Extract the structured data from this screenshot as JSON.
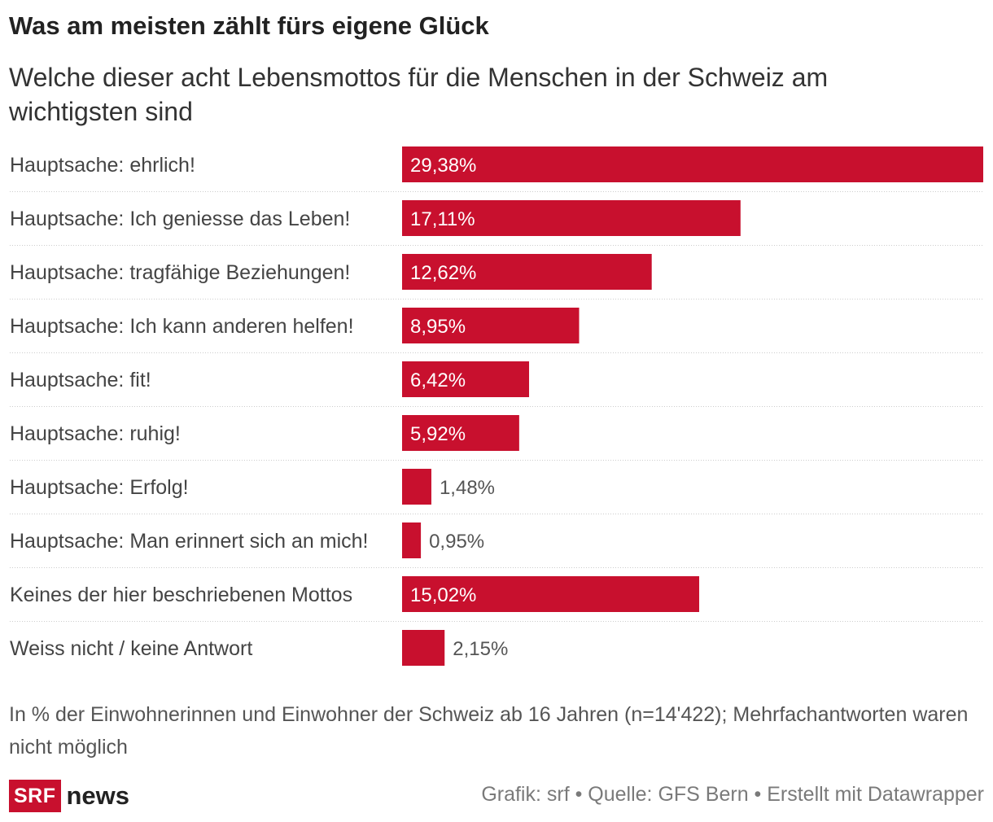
{
  "chart_data": {
    "type": "bar",
    "orientation": "horizontal",
    "title": "Was am meisten zählt fürs eigene Glück",
    "subtitle": "Welche dieser acht Lebensmottos für die Menschen in der Schweiz am wichtigsten sind",
    "categories": [
      "Hauptsache: ehrlich!",
      "Hauptsache: Ich geniesse das Leben!",
      "Hauptsache: tragfähige Beziehungen!",
      "Hauptsache: Ich kann anderen helfen!",
      "Hauptsache: fit!",
      "Hauptsache: ruhig!",
      "Hauptsache: Erfolg!",
      "Hauptsache: Man erinnert sich an mich!",
      "Keines der hier beschriebenen Mottos",
      "Weiss nicht / keine Antwort"
    ],
    "values": [
      29.38,
      17.11,
      12.62,
      8.95,
      6.42,
      5.92,
      1.48,
      0.95,
      15.02,
      2.15
    ],
    "value_labels": [
      "29,38%",
      "17,11%",
      "12,62%",
      "8,95%",
      "6,42%",
      "5,92%",
      "1,48%",
      "0,95%",
      "15,02%",
      "2,15%"
    ],
    "xlim": [
      0,
      29.38
    ],
    "bar_color": "#c8102e",
    "notes": "In % der Einwohnerinnen und Einwohner der Schweiz ab 16 Jahren (n=14'422); Mehrfachantworten waren nicht möglich"
  },
  "footer": {
    "logo_box": "SRF",
    "logo_text": "news",
    "credits": "Grafik: srf • Quelle: GFS Bern • Erstellt mit Datawrapper"
  },
  "colors": {
    "bar": "#c8102e",
    "label_inside": "#ffffff",
    "label_outside": "#555555",
    "separator": "#cccccc"
  }
}
